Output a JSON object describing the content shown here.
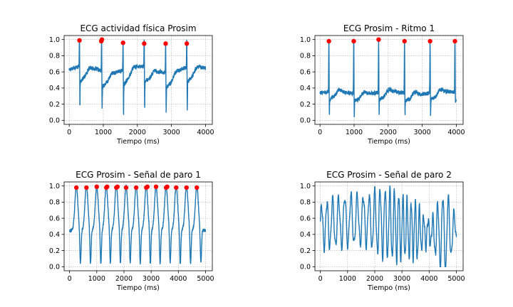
{
  "colors": {
    "signal": "#1f77b4",
    "peaks": "#ff0000",
    "grid": "#b0b0b0"
  },
  "chart_data": [
    {
      "type": "line",
      "title": "ECG actividad física Prosim",
      "xlabel": "Tiempo (ms)",
      "ylabel": "",
      "xlim": [
        -150,
        4200
      ],
      "ylim": [
        -0.05,
        1.05
      ],
      "xticks": [
        0,
        1000,
        2000,
        3000,
        4000
      ],
      "yticks": [
        0.0,
        0.2,
        0.4,
        0.6,
        0.8,
        1.0
      ],
      "grid": true,
      "signal": {
        "kind": "ecg",
        "peaks": [
          300,
          950,
          1580,
          2200,
          2830,
          3450
        ],
        "xmax": 4000,
        "baseline": 0.63,
        "trough": 0.46,
        "dips": [
          0.08,
          0.15,
          0.0,
          0.05,
          0.12,
          0.05
        ],
        "wander": 0.1
      },
      "series": [
        {
          "type": "scatter",
          "x": [
            300,
            940,
            960,
            1580,
            2200,
            2830,
            3450
          ],
          "y": [
            0.99,
            0.98,
            1.0,
            0.96,
            0.95,
            0.95,
            0.95
          ]
        }
      ]
    },
    {
      "type": "line",
      "title": "ECG Prosim - Ritmo 1",
      "xlabel": "Tiempo (ms)",
      "ylabel": "",
      "xlim": [
        -150,
        4200
      ],
      "ylim": [
        -0.05,
        1.05
      ],
      "xticks": [
        0,
        1000,
        2000,
        3000,
        4000
      ],
      "yticks": [
        0.0,
        0.2,
        0.4,
        0.6,
        0.8,
        1.0
      ],
      "grid": true,
      "signal": {
        "kind": "ecg",
        "peaks": [
          260,
          990,
          1720,
          2480,
          3230,
          3960
        ],
        "xmax": 4000,
        "baseline": 0.34,
        "trough": 0.26,
        "dips": [
          0.02,
          0.02,
          0.02,
          0.02,
          0.02,
          0.2
        ],
        "wander": 0.04
      },
      "series": [
        {
          "type": "scatter",
          "x": [
            260,
            990,
            1720,
            2480,
            3230,
            3960
          ],
          "y": [
            0.98,
            0.98,
            1.0,
            0.98,
            0.98,
            0.98
          ]
        }
      ]
    },
    {
      "type": "line",
      "title": "ECG Prosim - Señal de paro 1",
      "xlabel": "Tiempo (ms)",
      "ylabel": "",
      "xlim": [
        -200,
        5250
      ],
      "ylim": [
        -0.05,
        1.05
      ],
      "xticks": [
        0,
        1000,
        2000,
        3000,
        4000,
        5000
      ],
      "yticks": [
        0.0,
        0.2,
        0.4,
        0.6,
        0.8,
        1.0
      ],
      "grid": true,
      "signal": {
        "kind": "flutter",
        "peaks": [
          250,
          620,
          1000,
          1350,
          1720,
          2080,
          2450,
          2820,
          3180,
          3550,
          3920,
          4300,
          4680
        ],
        "xmax": 5000
      },
      "series": [
        {
          "type": "scatter",
          "x": [
            250,
            620,
            1000,
            1350,
            1380,
            1720,
            1760,
            2080,
            2450,
            2820,
            2860,
            3180,
            3550,
            3590,
            3920,
            4300,
            4680
          ],
          "y": [
            0.98,
            0.98,
            0.99,
            0.98,
            0.99,
            0.98,
            0.99,
            0.98,
            0.98,
            0.98,
            0.99,
            0.99,
            0.98,
            0.99,
            0.98,
            0.98,
            0.98
          ]
        }
      ]
    },
    {
      "type": "line",
      "title": "ECG Prosim - Señal de paro 2",
      "xlabel": "Tiempo (ms)",
      "ylabel": "",
      "xlim": [
        -200,
        5250
      ],
      "ylim": [
        -0.05,
        1.05
      ],
      "xticks": [
        0,
        1000,
        2000,
        3000,
        4000,
        5000
      ],
      "yticks": [
        0.0,
        0.2,
        0.4,
        0.6,
        0.8,
        1.0
      ],
      "grid": true,
      "signal": {
        "kind": "fibrillation",
        "xmax": 5000
      },
      "series": []
    }
  ]
}
